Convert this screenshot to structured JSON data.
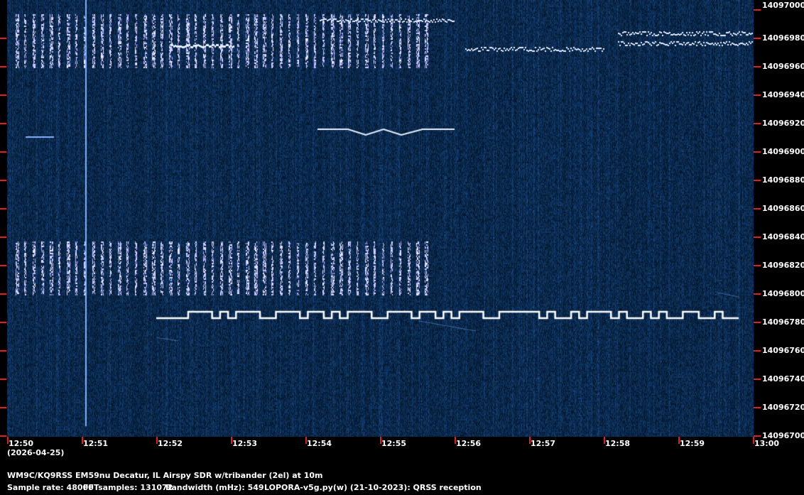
{
  "freq_labels": [
    "14097000",
    "14096980",
    "14096960",
    "14096940",
    "14096920",
    "14096900",
    "14096880",
    "14096860",
    "14096840",
    "14096820",
    "14096800",
    "14096780",
    "14096760",
    "14096740",
    "14096720",
    "14096700"
  ],
  "time_labels": [
    "12:50",
    "12:51",
    "12:52",
    "12:53",
    "12:54",
    "12:55",
    "12:56",
    "12:57",
    "12:58",
    "12:59",
    "13:00"
  ],
  "date_label": "(2026-04-25)",
  "station_info": "WM9C/KQ9RSS EM59nu Decatur, IL  Airspy SDR w/tribander (2el) at 10m",
  "stats": {
    "sample_rate": "Sample rate: 48000",
    "fft": "FFTsamples: 131072",
    "bandwidth": "Bandwidth (mHz): 549",
    "software": "LOPORA-v5g.py(w) (21-10-2023): QRSS reception"
  },
  "colors": {
    "background": "#03153f",
    "signal": "#ffffff",
    "tick": "#e02020"
  }
}
